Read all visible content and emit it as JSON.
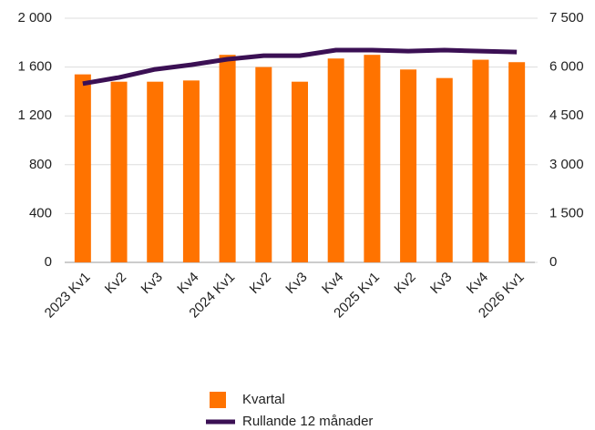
{
  "chart_data": {
    "type": "bar",
    "categories": [
      "2023 Kv1",
      "Kv2",
      "Kv3",
      "Kv4",
      "2024 Kv1",
      "Kv2",
      "Kv3",
      "Kv4",
      "2025 Kv1",
      "Kv2",
      "Kv3",
      "Kv4",
      "2026 Kv1"
    ],
    "series": [
      {
        "name": "Kvartal",
        "type": "bar",
        "color": "#ff7300",
        "values": [
          1540,
          1480,
          1480,
          1490,
          1700,
          1600,
          1480,
          1670,
          1700,
          1580,
          1510,
          1660,
          1640
        ]
      },
      {
        "name": "Rullande 12 månader",
        "type": "line",
        "axis": "y2",
        "color": "#3b1054",
        "values": [
          5490,
          5680,
          5930,
          6070,
          6240,
          6350,
          6350,
          6520,
          6520,
          6490,
          6520,
          6490,
          6460
        ]
      }
    ],
    "ylim": [
      0,
      2000
    ],
    "yticks": [
      0,
      400,
      800,
      {
        "value": 1200,
        "label": "1 200"
      },
      {
        "value": 1600,
        "label": "1 600"
      },
      {
        "value": 2000,
        "label": "2 000"
      }
    ],
    "y2lim": [
      0,
      7500
    ],
    "y2ticks": [
      0,
      {
        "value": 1500,
        "label": "1 500"
      },
      {
        "value": 3000,
        "label": "3 000"
      },
      {
        "value": 4500,
        "label": "4 500"
      },
      {
        "value": 6000,
        "label": "6 000"
      },
      {
        "value": 7500,
        "label": "7 500"
      }
    ],
    "grid": true,
    "legend": "bottom"
  }
}
